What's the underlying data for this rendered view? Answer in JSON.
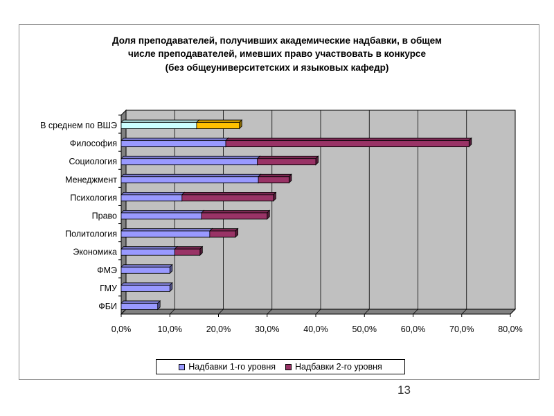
{
  "slide": {
    "page_number": "13"
  },
  "chart_data": {
    "type": "bar",
    "orientation": "horizontal",
    "stacked": true,
    "title_lines": [
      "Доля преподавателей, получивших академические надбавки, в общем",
      "числе преподавателей, имевших право участвовать в конкурсе",
      "(без общеуниверситетских и языковых кафедр)"
    ],
    "categories": [
      "В среднем по ВШЭ",
      "Философия",
      "Социология",
      "Менеджмент",
      "Психология",
      "Право",
      "Политология",
      "Экономика",
      "ФМЭ",
      "ГМУ",
      "ФБИ"
    ],
    "series": [
      {
        "name": "Надбавки 1-го уровня",
        "values": [
          15.5,
          21.5,
          28.0,
          28.2,
          12.5,
          16.5,
          18.2,
          11.0,
          10.0,
          10.0,
          7.5
        ]
      },
      {
        "name": "Надбавки 2-го уровня",
        "values": [
          8.8,
          50.0,
          12.0,
          6.3,
          18.8,
          13.5,
          5.3,
          5.2,
          0.0,
          0.0,
          0.0
        ]
      }
    ],
    "highlight": {
      "category_index": 0,
      "colors": [
        "#ccffff",
        "#ffc000"
      ]
    },
    "xlim": [
      0,
      80
    ],
    "xticks": [
      0,
      10,
      20,
      30,
      40,
      50,
      60,
      70,
      80
    ],
    "xtick_labels": [
      "0,0%",
      "10,0%",
      "20,0%",
      "30,0%",
      "40,0%",
      "50,0%",
      "60,0%",
      "70,0%",
      "80,0%"
    ],
    "grid": true,
    "legend_position": "bottom",
    "colors": {
      "series1": "#9999ff",
      "series2": "#993366",
      "plot_bg": "#c0c0c0",
      "wall_side": "#808080",
      "floor": "#808080"
    }
  }
}
